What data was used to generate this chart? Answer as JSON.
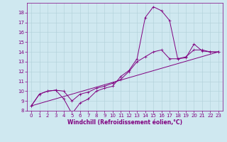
{
  "xlabel": "Windchill (Refroidissement éolien,°C)",
  "bg_color": "#cfe8f0",
  "line_color": "#800080",
  "grid_color": "#b0cfd8",
  "xlim": [
    -0.5,
    23.5
  ],
  "ylim": [
    8,
    19
  ],
  "xticks": [
    0,
    1,
    2,
    3,
    4,
    5,
    6,
    7,
    8,
    9,
    10,
    11,
    12,
    13,
    14,
    15,
    16,
    17,
    18,
    19,
    20,
    21,
    22,
    23
  ],
  "yticks": [
    8,
    9,
    10,
    11,
    12,
    13,
    14,
    15,
    16,
    17,
    18
  ],
  "curve1_x": [
    0,
    1,
    2,
    3,
    4,
    5,
    6,
    7,
    8,
    9,
    10,
    11,
    12,
    13,
    14,
    15,
    16,
    17,
    18,
    19,
    20,
    21,
    22,
    23
  ],
  "curve1_y": [
    8.5,
    9.7,
    10.0,
    10.1,
    9.2,
    7.7,
    8.8,
    9.2,
    10.0,
    10.3,
    10.5,
    11.5,
    12.1,
    13.3,
    17.5,
    18.6,
    18.2,
    17.2,
    13.3,
    13.4,
    14.8,
    14.1,
    14.0,
    14.0
  ],
  "curve2_x": [
    0,
    1,
    2,
    3,
    4,
    5,
    6,
    7,
    8,
    9,
    10,
    11,
    12,
    13,
    14,
    15,
    16,
    17,
    18,
    19,
    20,
    21,
    22,
    23
  ],
  "curve2_y": [
    8.5,
    9.7,
    10.0,
    10.1,
    10.0,
    9.0,
    9.7,
    9.9,
    10.3,
    10.5,
    10.8,
    11.2,
    12.0,
    13.0,
    13.5,
    14.0,
    14.2,
    13.3,
    13.3,
    13.5,
    14.2,
    14.2,
    14.0,
    14.0
  ],
  "curve3_x": [
    0,
    23
  ],
  "curve3_y": [
    8.5,
    14.0
  ],
  "xlabel_fontsize": 5.5,
  "tick_fontsize": 5,
  "marker_size": 1.8,
  "line_width": 0.7
}
